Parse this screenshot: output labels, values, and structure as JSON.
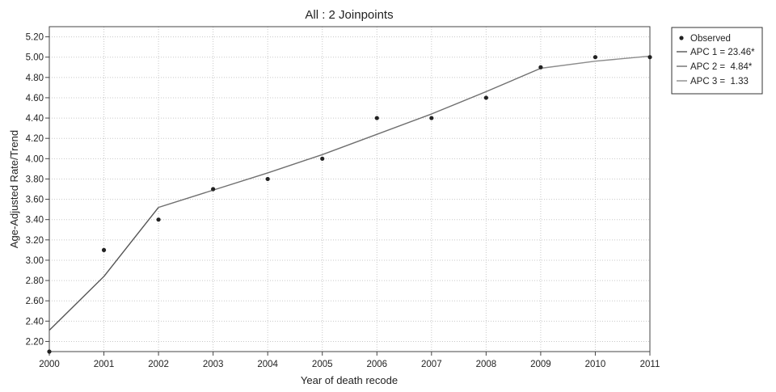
{
  "chart_data": {
    "type": "line",
    "title": "All : 2 Joinpoints",
    "xlabel": "Year of death recode",
    "ylabel": "Age-Adjusted Rate/Trend",
    "x": [
      2000,
      2001,
      2002,
      2003,
      2004,
      2005,
      2006,
      2007,
      2008,
      2009,
      2010,
      2011
    ],
    "x_tick_labels": [
      "2000",
      "2001",
      "2002",
      "2003",
      "2004",
      "2005",
      "2006",
      "2007",
      "2008",
      "2009",
      "2010",
      "2011"
    ],
    "xlim": [
      2000,
      2011
    ],
    "ylim": [
      2.1,
      5.3
    ],
    "y_ticks": [
      2.2,
      2.4,
      2.6,
      2.8,
      3.0,
      3.2,
      3.4,
      3.6,
      3.8,
      4.0,
      4.2,
      4.4,
      4.6,
      4.8,
      5.0,
      5.2
    ],
    "y_tick_labels": [
      "2.20",
      "2.40",
      "2.60",
      "2.80",
      "3.00",
      "3.20",
      "3.40",
      "3.60",
      "3.80",
      "4.00",
      "4.20",
      "4.40",
      "4.60",
      "4.80",
      "5.00",
      "5.20"
    ],
    "grid": true,
    "legend_position": "outside-top-right",
    "observed": {
      "name": "Observed",
      "x": [
        2000,
        2001,
        2002,
        2003,
        2004,
        2005,
        2006,
        2007,
        2008,
        2009,
        2010,
        2011
      ],
      "y": [
        2.1,
        3.1,
        3.4,
        3.7,
        3.8,
        4.0,
        4.4,
        4.4,
        4.6,
        4.9,
        5.0,
        5.0
      ]
    },
    "trend": {
      "x": [
        2000,
        2001,
        2002,
        2003,
        2004,
        2005,
        2006,
        2007,
        2008,
        2009,
        2010,
        2011
      ],
      "y": [
        2.31,
        2.84,
        3.52,
        3.69,
        3.86,
        4.04,
        4.24,
        4.44,
        4.66,
        4.89,
        4.96,
        5.01
      ]
    },
    "segments": [
      {
        "name": "APC 1 = 23.46*",
        "x_start": 2000,
        "x_end": 2002,
        "color": "#555555"
      },
      {
        "name": "APC 2 =  4.84*",
        "x_start": 2002,
        "x_end": 2009,
        "color": "#6f6f6f"
      },
      {
        "name": "APC 3 =  1.33",
        "x_start": 2009,
        "x_end": 2011,
        "color": "#8c8c8c"
      }
    ],
    "colors": {
      "observed_marker": "#222222",
      "grid": "#c8c8c8",
      "frame": "#444444"
    }
  }
}
